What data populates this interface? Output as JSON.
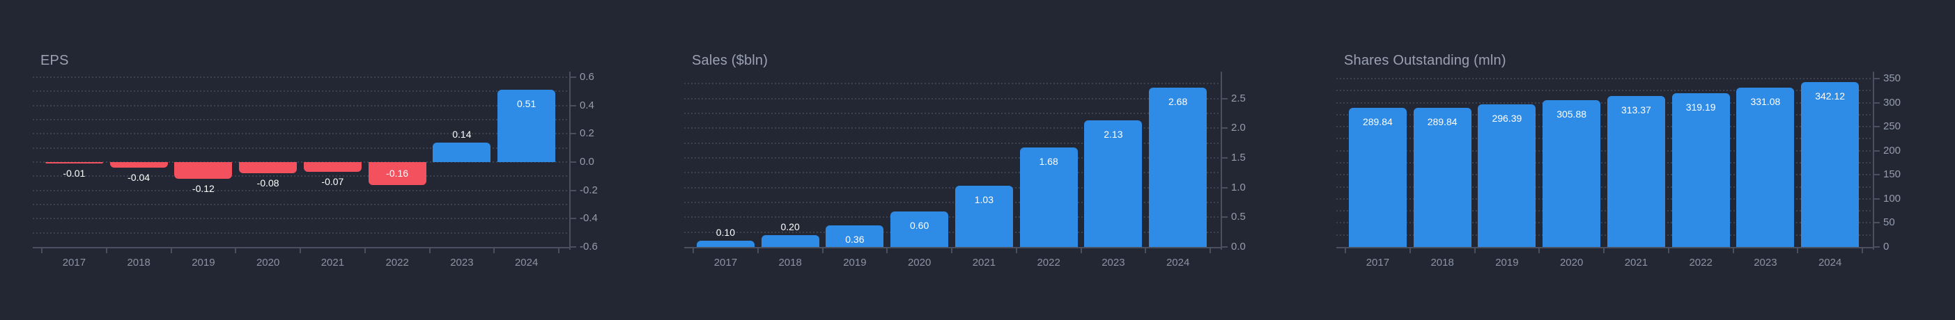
{
  "theme": {
    "background": "#222733",
    "positive_bar_color": "#2f8ce6",
    "negative_bar_color": "#f4515f",
    "title_color": "#9aa2b4",
    "axis_tick_label_color": "#959dae",
    "year_label_color": "#8b93a4",
    "axis_line_color": "#4a5060",
    "gridline_color": "#3c4250",
    "value_label_color": "#ffffff"
  },
  "chart_data": [
    {
      "type": "bar",
      "title": "EPS",
      "categories": [
        "2017",
        "2018",
        "2019",
        "2020",
        "2021",
        "2022",
        "2023",
        "2024"
      ],
      "values": [
        -0.01,
        -0.04,
        -0.12,
        -0.08,
        -0.07,
        -0.16,
        0.14,
        0.51
      ],
      "value_labels": [
        "-0.01",
        "-0.04",
        "-0.12",
        "-0.08",
        "-0.07",
        "-0.16",
        "0.14",
        "0.51"
      ],
      "ylim": [
        -0.6,
        0.6
      ],
      "ytick_values": [
        0.6,
        0.4,
        0.2,
        0.0,
        -0.2,
        -0.4,
        -0.6
      ],
      "ytick_labels": [
        "0.6",
        "0.4",
        "0.2",
        "0.0",
        "-0.2",
        "-0.4",
        "-0.6"
      ],
      "grid_step": 0.1,
      "axis_position": "right",
      "grid_style": "dotted",
      "legend": "none"
    },
    {
      "type": "bar",
      "title": "Sales ($bln)",
      "categories": [
        "2017",
        "2018",
        "2019",
        "2020",
        "2021",
        "2022",
        "2023",
        "2024"
      ],
      "values": [
        0.1,
        0.2,
        0.36,
        0.6,
        1.03,
        1.68,
        2.13,
        2.68
      ],
      "value_labels": [
        "0.10",
        "0.20",
        "0.36",
        "0.60",
        "1.03",
        "1.68",
        "2.13",
        "2.68"
      ],
      "ylim": [
        0,
        2.86
      ],
      "ytick_values": [
        2.5,
        2.0,
        1.5,
        1.0,
        0.5,
        0.0
      ],
      "ytick_labels": [
        "2.5",
        "2.0",
        "1.5",
        "1.0",
        "0.5",
        "0.0"
      ],
      "grid_step": 0.25,
      "axis_position": "right",
      "grid_style": "dotted",
      "legend": "none"
    },
    {
      "type": "bar",
      "title": "Shares Outstanding (mln)",
      "categories": [
        "2017",
        "2018",
        "2019",
        "2020",
        "2021",
        "2022",
        "2023",
        "2024"
      ],
      "values": [
        289.84,
        289.84,
        296.39,
        305.88,
        313.37,
        319.19,
        331.08,
        342.12
      ],
      "value_labels": [
        "289.84",
        "289.84",
        "296.39",
        "305.88",
        "313.37",
        "319.19",
        "331.08",
        "342.12"
      ],
      "ylim": [
        0,
        352.9
      ],
      "ytick_values": [
        350,
        300,
        250,
        200,
        150,
        100,
        50,
        0
      ],
      "ytick_labels": [
        "350",
        "300",
        "250",
        "200",
        "150",
        "100",
        "50",
        "0"
      ],
      "grid_step": 25,
      "axis_position": "right",
      "grid_style": "dotted",
      "legend": "none"
    }
  ]
}
